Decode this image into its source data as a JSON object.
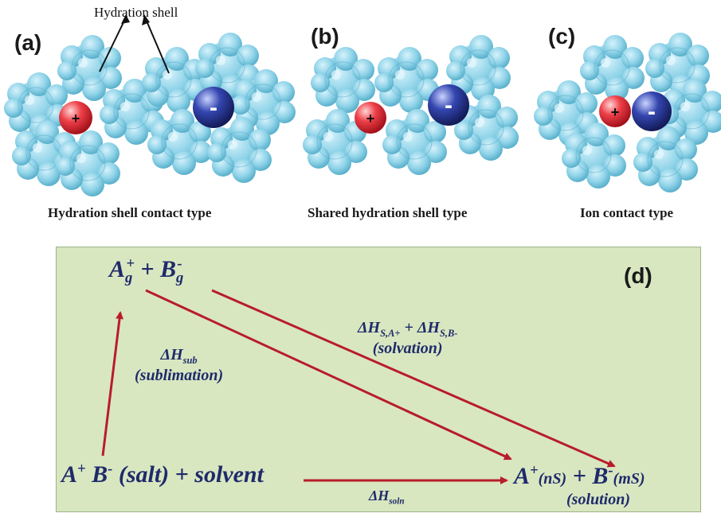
{
  "panels": {
    "a": {
      "letter": "(a)",
      "caption": "Hydration  shell  contact type"
    },
    "b": {
      "letter": "(b)",
      "caption": "Shared hydration  shell type"
    },
    "c": {
      "letter": "(c)",
      "caption": "Ion contact type"
    },
    "d": {
      "letter": "(d)"
    }
  },
  "shell_label": "Hydration  shell",
  "ions": {
    "cation": "+",
    "anion": "-"
  },
  "colors": {
    "water": "#8fd3e8",
    "cation": "#e8323c",
    "anion": "#2c3a9a",
    "box": "#d8e7c0",
    "arrow": "#b81c2a",
    "text": "#1f2a6b"
  },
  "cycle": {
    "gas": {
      "a": "A",
      "a_sub": "g",
      "a_sup": "+",
      "plus": " + ",
      "b": "B",
      "b_sub": "g",
      "b_sup": "-"
    },
    "salt": {
      "a": "A",
      "a_sup": "+",
      "b": " B",
      "b_sup": "-",
      "rest": " (salt) + solvent"
    },
    "solution": {
      "a": "A",
      "a_sup": "+",
      "a_tag": "(nS)",
      "plus": " + ",
      "b": "B",
      "b_sup": "-",
      "b_tag": "(mS)",
      "label": "(solution)"
    },
    "sublimation": {
      "dh": "ΔH",
      "sub": "sub",
      "label": "(sublimation)"
    },
    "solvation": {
      "dh1": "ΔH",
      "sub1": "S,A+",
      "plus": " + ",
      "dh2": "ΔH",
      "sub2": "S,B-",
      "label": "(solvation)"
    },
    "soln": {
      "dh": "ΔH",
      "sub": "soln"
    }
  }
}
